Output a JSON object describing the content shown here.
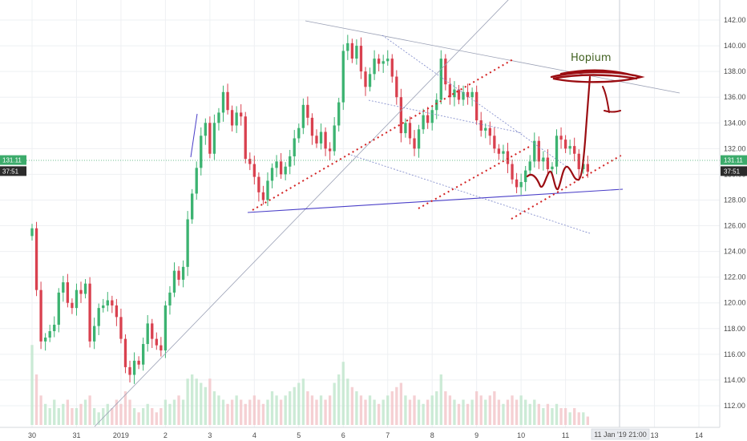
{
  "chart_data": {
    "type": "candlestick",
    "title": "",
    "xlabel": "",
    "ylabel": "",
    "ylim": [
      111.0,
      143.0
    ],
    "xlim": [
      29.9,
      14.3
    ],
    "grid": true,
    "y_ticks": [
      112,
      114,
      116,
      118,
      120,
      122,
      124,
      126,
      128,
      130,
      132,
      134,
      136,
      138,
      140,
      142
    ],
    "y_tick_labels": [
      "112.00",
      "114.00",
      "116.00",
      "118.00",
      "120.00",
      "122.00",
      "124.00",
      "126.00",
      "128.00",
      "130.00",
      "132.00",
      "134.00",
      "136.00",
      "138.00",
      "140.00",
      "142.00"
    ],
    "x_ticks": [
      {
        "t": 0,
        "label": "30"
      },
      {
        "t": 1,
        "label": "31"
      },
      {
        "t": 2,
        "label": "2019"
      },
      {
        "t": 3,
        "label": "2"
      },
      {
        "t": 4,
        "label": "3"
      },
      {
        "t": 5,
        "label": "4"
      },
      {
        "t": 6,
        "label": "5"
      },
      {
        "t": 7,
        "label": "6"
      },
      {
        "t": 8,
        "label": "7"
      },
      {
        "t": 9,
        "label": "8"
      },
      {
        "t": 10,
        "label": "9"
      },
      {
        "t": 11,
        "label": "10"
      },
      {
        "t": 12,
        "label": "11"
      },
      {
        "t": 14,
        "label": "13"
      },
      {
        "t": 15,
        "label": "14"
      }
    ],
    "cursor_label": "11 Jan '19   21:00",
    "price_badges": [
      {
        "label": "131.11",
        "value": 131.11,
        "color": "#3cab6b"
      },
      {
        "label": "37:51",
        "value": 130.25,
        "color": "#2b2b2b"
      }
    ],
    "price_line": 131.11,
    "closes": [
      [
        0.0,
        125.8
      ],
      [
        0.1,
        121.0
      ],
      [
        0.2,
        117.0
      ],
      [
        0.3,
        117.3
      ],
      [
        0.4,
        117.8
      ],
      [
        0.5,
        118.3
      ],
      [
        0.6,
        120.8
      ],
      [
        0.7,
        121.6
      ],
      [
        0.8,
        120.0
      ],
      [
        0.9,
        119.6
      ],
      [
        1.0,
        121.0
      ],
      [
        1.1,
        120.7
      ],
      [
        1.2,
        121.5
      ],
      [
        1.3,
        117.0
      ],
      [
        1.4,
        118.2
      ],
      [
        1.5,
        119.6
      ],
      [
        1.6,
        119.8
      ],
      [
        1.7,
        120.2
      ],
      [
        1.8,
        119.8
      ],
      [
        1.9,
        118.9
      ],
      [
        2.0,
        117.2
      ],
      [
        2.1,
        115.0
      ],
      [
        2.2,
        114.4
      ],
      [
        2.3,
        115.5
      ],
      [
        2.4,
        115.2
      ],
      [
        2.5,
        116.8
      ],
      [
        2.6,
        118.4
      ],
      [
        2.7,
        117.2
      ],
      [
        2.8,
        116.7
      ],
      [
        2.9,
        116.3
      ],
      [
        3.0,
        119.8
      ],
      [
        3.1,
        120.8
      ],
      [
        3.2,
        122.5
      ],
      [
        3.3,
        121.8
      ],
      [
        3.4,
        122.8
      ],
      [
        3.5,
        126.5
      ],
      [
        3.6,
        128.5
      ],
      [
        3.7,
        130.5
      ],
      [
        3.8,
        133.0
      ],
      [
        3.9,
        134.0
      ],
      [
        4.0,
        131.6
      ],
      [
        4.1,
        134.0
      ],
      [
        4.2,
        134.8
      ],
      [
        4.3,
        136.4
      ],
      [
        4.4,
        135.0
      ],
      [
        4.5,
        133.8
      ],
      [
        4.6,
        134.8
      ],
      [
        4.7,
        134.5
      ],
      [
        4.8,
        131.2
      ],
      [
        4.9,
        130.8
      ],
      [
        5.0,
        129.8
      ],
      [
        5.1,
        128.6
      ],
      [
        5.2,
        128.0
      ],
      [
        5.3,
        129.5
      ],
      [
        5.4,
        130.5
      ],
      [
        5.5,
        131.0
      ],
      [
        5.6,
        130.0
      ],
      [
        5.7,
        130.6
      ],
      [
        5.8,
        131.4
      ],
      [
        5.9,
        132.8
      ],
      [
        6.0,
        133.6
      ],
      [
        6.1,
        135.4
      ],
      [
        6.2,
        134.4
      ],
      [
        6.3,
        133.0
      ],
      [
        6.4,
        132.4
      ],
      [
        6.5,
        133.3
      ],
      [
        6.6,
        132.0
      ],
      [
        6.7,
        131.8
      ],
      [
        6.8,
        133.8
      ],
      [
        6.9,
        135.6
      ],
      [
        7.0,
        139.6
      ],
      [
        7.1,
        140.2
      ],
      [
        7.2,
        139.0
      ],
      [
        7.3,
        140.0
      ],
      [
        7.4,
        138.0
      ],
      [
        7.5,
        136.8
      ],
      [
        7.6,
        137.8
      ],
      [
        7.7,
        139.0
      ],
      [
        7.8,
        138.6
      ],
      [
        7.9,
        138.8
      ],
      [
        8.0,
        139.0
      ],
      [
        8.1,
        137.6
      ],
      [
        8.2,
        136.0
      ],
      [
        8.3,
        133.2
      ],
      [
        8.4,
        134.0
      ],
      [
        8.5,
        132.8
      ],
      [
        8.6,
        132.0
      ],
      [
        8.7,
        133.5
      ],
      [
        8.8,
        134.6
      ],
      [
        8.9,
        134.0
      ],
      [
        9.0,
        135.0
      ],
      [
        9.1,
        135.8
      ],
      [
        9.2,
        139.0
      ],
      [
        9.3,
        137.0
      ],
      [
        9.4,
        136.0
      ],
      [
        9.5,
        136.6
      ],
      [
        9.6,
        135.8
      ],
      [
        9.7,
        136.4
      ],
      [
        9.8,
        136.0
      ],
      [
        9.9,
        136.4
      ],
      [
        10.0,
        134.2
      ],
      [
        10.1,
        133.4
      ],
      [
        10.2,
        133.6
      ],
      [
        10.3,
        133.0
      ],
      [
        10.4,
        132.0
      ],
      [
        10.5,
        131.6
      ],
      [
        10.6,
        131.8
      ],
      [
        10.7,
        130.8
      ],
      [
        10.8,
        129.6
      ],
      [
        10.9,
        129.0
      ],
      [
        11.0,
        129.4
      ],
      [
        11.1,
        130.3
      ],
      [
        11.2,
        131.0
      ],
      [
        11.3,
        132.6
      ],
      [
        11.4,
        131.0
      ],
      [
        11.5,
        131.3
      ],
      [
        11.6,
        130.4
      ],
      [
        11.7,
        130.6
      ],
      [
        11.8,
        133.0
      ],
      [
        11.9,
        132.7
      ],
      [
        12.0,
        132.0
      ],
      [
        12.1,
        132.2
      ],
      [
        12.2,
        131.6
      ],
      [
        12.3,
        130.4
      ],
      [
        12.4,
        130.8
      ],
      [
        12.5,
        130.2
      ]
    ],
    "volumes": [
      [
        0.0,
        0.95
      ],
      [
        0.1,
        0.6
      ],
      [
        0.2,
        0.35
      ],
      [
        0.3,
        0.25
      ],
      [
        0.4,
        0.2
      ],
      [
        0.5,
        0.3
      ],
      [
        0.6,
        0.2
      ],
      [
        0.7,
        0.25
      ],
      [
        0.8,
        0.3
      ],
      [
        0.9,
        0.2
      ],
      [
        1.0,
        0.2
      ],
      [
        1.1,
        0.25
      ],
      [
        1.2,
        0.3
      ],
      [
        1.3,
        0.35
      ],
      [
        1.4,
        0.2
      ],
      [
        1.5,
        0.15
      ],
      [
        1.6,
        0.2
      ],
      [
        1.7,
        0.25
      ],
      [
        1.8,
        0.2
      ],
      [
        1.9,
        0.3
      ],
      [
        2.0,
        0.25
      ],
      [
        2.1,
        0.4
      ],
      [
        2.2,
        0.3
      ],
      [
        2.3,
        0.2
      ],
      [
        2.4,
        0.15
      ],
      [
        2.5,
        0.2
      ],
      [
        2.6,
        0.25
      ],
      [
        2.7,
        0.2
      ],
      [
        2.8,
        0.15
      ],
      [
        2.9,
        0.2
      ],
      [
        3.0,
        0.3
      ],
      [
        3.1,
        0.25
      ],
      [
        3.2,
        0.3
      ],
      [
        3.3,
        0.35
      ],
      [
        3.4,
        0.3
      ],
      [
        3.5,
        0.55
      ],
      [
        3.6,
        0.6
      ],
      [
        3.7,
        0.55
      ],
      [
        3.8,
        0.5
      ],
      [
        3.9,
        0.45
      ],
      [
        4.0,
        0.55
      ],
      [
        4.1,
        0.4
      ],
      [
        4.2,
        0.35
      ],
      [
        4.3,
        0.3
      ],
      [
        4.4,
        0.25
      ],
      [
        4.5,
        0.3
      ],
      [
        4.6,
        0.35
      ],
      [
        4.7,
        0.3
      ],
      [
        4.8,
        0.25
      ],
      [
        4.9,
        0.3
      ],
      [
        5.0,
        0.35
      ],
      [
        5.1,
        0.3
      ],
      [
        5.2,
        0.25
      ],
      [
        5.3,
        0.3
      ],
      [
        5.4,
        0.4
      ],
      [
        5.5,
        0.35
      ],
      [
        5.6,
        0.3
      ],
      [
        5.7,
        0.35
      ],
      [
        5.8,
        0.4
      ],
      [
        5.9,
        0.45
      ],
      [
        6.0,
        0.5
      ],
      [
        6.1,
        0.55
      ],
      [
        6.2,
        0.4
      ],
      [
        6.3,
        0.35
      ],
      [
        6.4,
        0.3
      ],
      [
        6.5,
        0.35
      ],
      [
        6.6,
        0.3
      ],
      [
        6.7,
        0.35
      ],
      [
        6.8,
        0.5
      ],
      [
        6.9,
        0.6
      ],
      [
        7.0,
        0.75
      ],
      [
        7.1,
        0.55
      ],
      [
        7.2,
        0.45
      ],
      [
        7.3,
        0.4
      ],
      [
        7.4,
        0.35
      ],
      [
        7.5,
        0.3
      ],
      [
        7.6,
        0.35
      ],
      [
        7.7,
        0.3
      ],
      [
        7.8,
        0.25
      ],
      [
        7.9,
        0.3
      ],
      [
        8.0,
        0.35
      ],
      [
        8.1,
        0.4
      ],
      [
        8.2,
        0.45
      ],
      [
        8.3,
        0.5
      ],
      [
        8.4,
        0.35
      ],
      [
        8.5,
        0.3
      ],
      [
        8.6,
        0.35
      ],
      [
        8.7,
        0.3
      ],
      [
        8.8,
        0.25
      ],
      [
        8.9,
        0.3
      ],
      [
        9.0,
        0.35
      ],
      [
        9.1,
        0.4
      ],
      [
        9.2,
        0.6
      ],
      [
        9.3,
        0.4
      ],
      [
        9.4,
        0.35
      ],
      [
        9.5,
        0.3
      ],
      [
        9.6,
        0.25
      ],
      [
        9.7,
        0.3
      ],
      [
        9.8,
        0.25
      ],
      [
        9.9,
        0.3
      ],
      [
        10.0,
        0.4
      ],
      [
        10.1,
        0.35
      ],
      [
        10.2,
        0.3
      ],
      [
        10.3,
        0.35
      ],
      [
        10.4,
        0.4
      ],
      [
        10.5,
        0.3
      ],
      [
        10.6,
        0.25
      ],
      [
        10.7,
        0.3
      ],
      [
        10.8,
        0.35
      ],
      [
        10.9,
        0.3
      ],
      [
        11.0,
        0.35
      ],
      [
        11.1,
        0.3
      ],
      [
        11.2,
        0.25
      ],
      [
        11.3,
        0.3
      ],
      [
        11.4,
        0.25
      ],
      [
        11.5,
        0.2
      ],
      [
        11.6,
        0.25
      ],
      [
        11.7,
        0.2
      ],
      [
        11.8,
        0.25
      ],
      [
        11.9,
        0.2
      ],
      [
        12.0,
        0.2
      ],
      [
        12.1,
        0.15
      ],
      [
        12.2,
        0.2
      ],
      [
        12.3,
        0.15
      ],
      [
        12.4,
        0.15
      ],
      [
        12.5,
        0.1
      ]
    ],
    "annotations": [
      {
        "text": "Hopium"
      }
    ],
    "colors": {
      "up": "#3cb371",
      "down": "#d9414f",
      "grid": "#eef0f3",
      "support_line": "#4a3fc8",
      "channel": "#d32020",
      "drawing": "#9b0d12",
      "trend_thin": "#8a8fa3"
    }
  }
}
